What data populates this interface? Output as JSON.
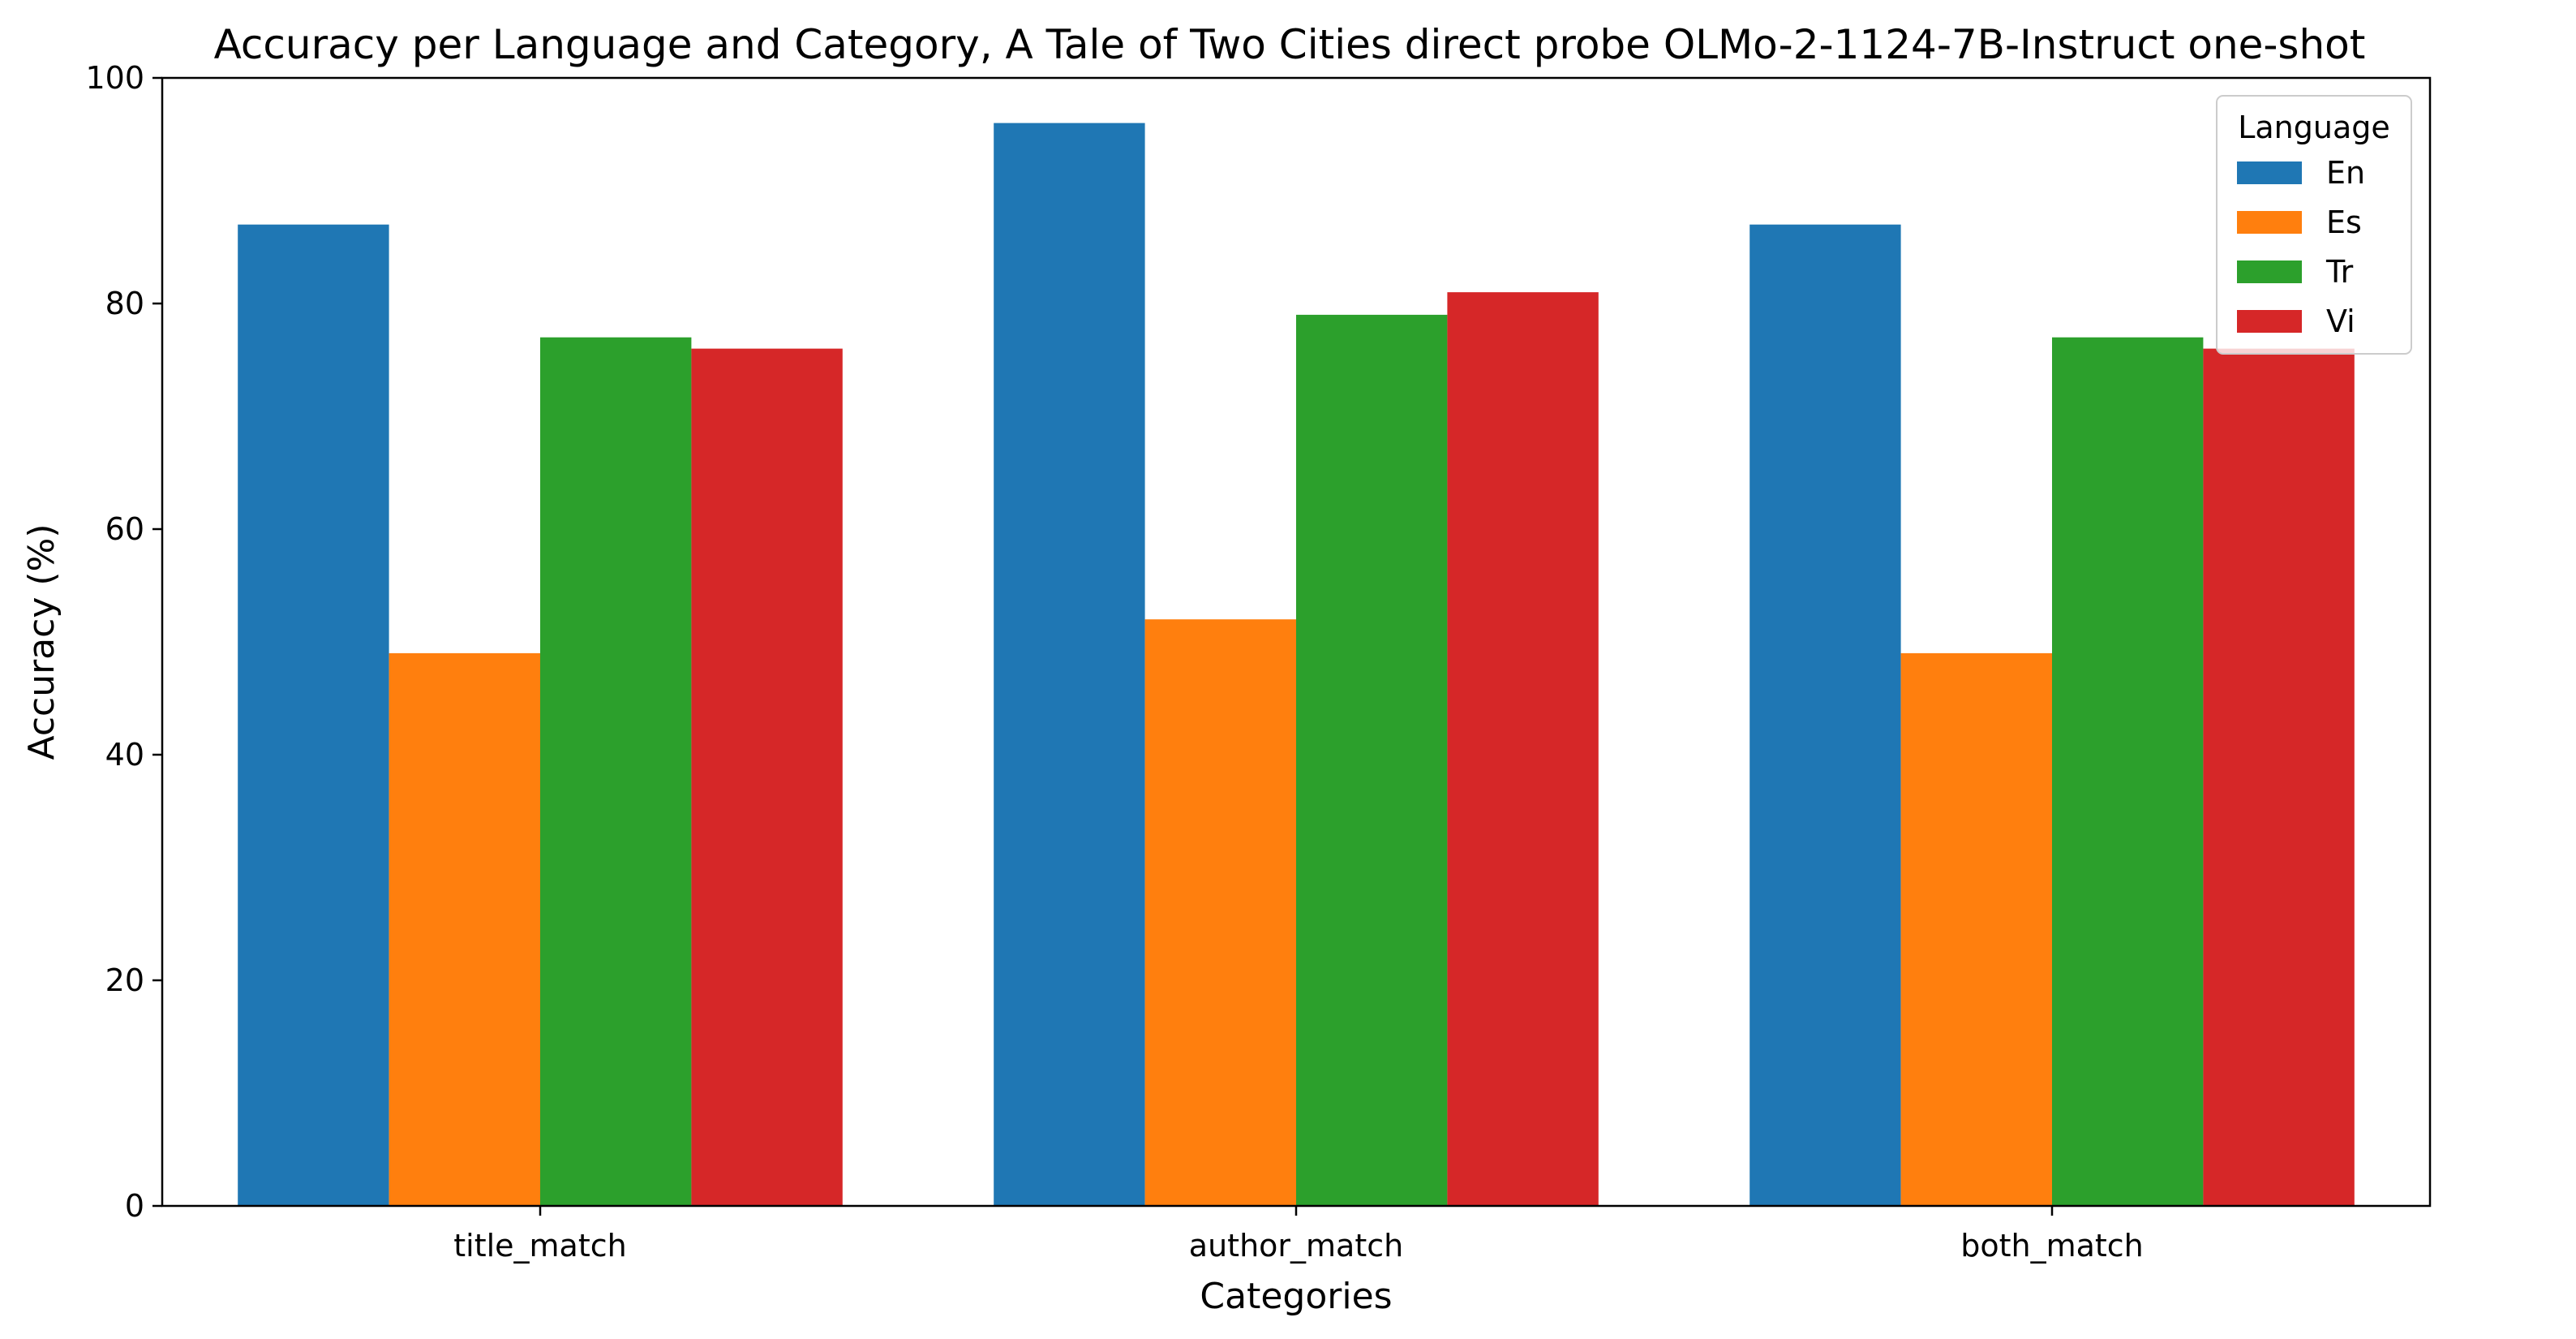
{
  "chart_data": {
    "type": "bar",
    "title": "Accuracy per Language and Category, A Tale of Two Cities direct probe OLMo-2-1124-7B-Instruct one-shot",
    "xlabel": "Categories",
    "ylabel": "Accuracy (%)",
    "categories": [
      "title_match",
      "author_match",
      "both_match"
    ],
    "ylim": [
      0,
      100
    ],
    "yticks": [
      0,
      20,
      40,
      60,
      80,
      100
    ],
    "grid": false,
    "legend": {
      "title": "Language",
      "placement": "top-right"
    },
    "series": [
      {
        "name": "En",
        "color": "#1f77b4",
        "values": [
          87,
          96,
          87
        ]
      },
      {
        "name": "Es",
        "color": "#ff7f0e",
        "values": [
          49,
          52,
          49
        ]
      },
      {
        "name": "Tr",
        "color": "#2ca02c",
        "values": [
          77,
          79,
          77
        ]
      },
      {
        "name": "Vi",
        "color": "#d62728",
        "values": [
          76,
          81,
          76
        ]
      }
    ]
  }
}
